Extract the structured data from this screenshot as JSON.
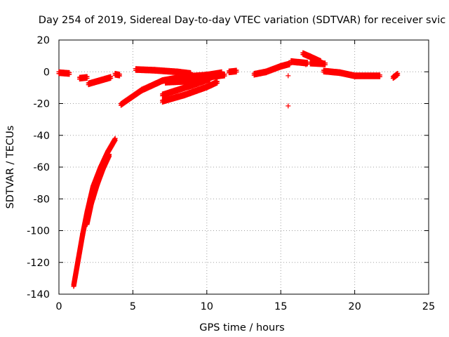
{
  "chart_data": {
    "type": "scatter",
    "title": "Day 254 of 2019, Sidereal Day-to-day VTEC variation (SDTVAR) for receiver svic",
    "xlabel": "GPS time / hours",
    "ylabel": "SDTVAR / TECUs",
    "xlim": [
      0,
      25
    ],
    "ylim": [
      -140,
      20
    ],
    "xticks": [
      0,
      5,
      10,
      15,
      20,
      25
    ],
    "yticks": [
      -140,
      -120,
      -100,
      -80,
      -60,
      -40,
      -20,
      0,
      20
    ],
    "grid": true,
    "legend": "none",
    "marker": "+",
    "color": "#ff0000",
    "series": [
      {
        "segments": [
          [
            [
              0.0,
              0.0
            ],
            [
              0.7,
              -0.5
            ]
          ],
          [
            [
              1.4,
              -3.5
            ],
            [
              1.9,
              -3.0
            ]
          ],
          [
            [
              2.0,
              -7.0
            ],
            [
              3.5,
              -3.0
            ]
          ],
          [
            [
              3.8,
              -1.0
            ],
            [
              4.1,
              -1.5
            ]
          ],
          [
            [
              4.2,
              -20.0
            ],
            [
              5.6,
              -11.0
            ],
            [
              7.0,
              -5.0
            ],
            [
              8.5,
              -2.5
            ],
            [
              10.0,
              -1.5
            ],
            [
              11.0,
              0.0
            ]
          ],
          [
            [
              5.2,
              2.0
            ],
            [
              6.5,
              1.5
            ],
            [
              8.0,
              0.5
            ],
            [
              8.9,
              -0.5
            ]
          ],
          [
            [
              7.2,
              -6.0
            ],
            [
              8.5,
              -5.5
            ],
            [
              10.0,
              -3.0
            ],
            [
              11.2,
              -1.5
            ]
          ],
          [
            [
              7.0,
              -14.0
            ],
            [
              9.0,
              -8.0
            ],
            [
              10.2,
              -4.0
            ]
          ],
          [
            [
              7.0,
              -18.0
            ],
            [
              8.5,
              -14.0
            ],
            [
              10.0,
              -9.0
            ],
            [
              10.7,
              -6.0
            ]
          ],
          [
            [
              11.5,
              0.5
            ],
            [
              12.0,
              1.0
            ]
          ],
          [
            [
              13.2,
              -1.0
            ],
            [
              14.0,
              0.5
            ],
            [
              15.0,
              4.0
            ],
            [
              15.6,
              5.5
            ]
          ],
          [
            [
              15.7,
              7.0
            ],
            [
              16.8,
              6.0
            ]
          ],
          [
            [
              16.5,
              12.0
            ],
            [
              17.0,
              10.0
            ],
            [
              17.7,
              7.0
            ]
          ],
          [
            [
              17.0,
              6.0
            ],
            [
              18.0,
              5.5
            ]
          ],
          [
            [
              17.9,
              1.0
            ],
            [
              19.0,
              0.0
            ],
            [
              20.0,
              -2.0
            ],
            [
              21.7,
              -2.0
            ]
          ],
          [
            [
              22.6,
              -3.0
            ],
            [
              22.9,
              -1.0
            ]
          ],
          [
            [
              1.0,
              -134.0
            ],
            [
              1.3,
              -118.0
            ],
            [
              1.6,
              -102.0
            ],
            [
              1.9,
              -88.0
            ],
            [
              2.3,
              -72.0
            ],
            [
              2.8,
              -60.0
            ],
            [
              3.3,
              -50.0
            ],
            [
              3.8,
              -42.0
            ]
          ],
          [
            [
              1.9,
              -95.0
            ],
            [
              2.2,
              -82.0
            ],
            [
              2.6,
              -70.0
            ],
            [
              3.0,
              -60.0
            ],
            [
              3.4,
              -52.0
            ]
          ]
        ]
      }
    ],
    "isolated_points": [
      [
        15.5,
        -21.5
      ],
      [
        15.5,
        -2.5
      ],
      [
        16.7,
        4.5
      ]
    ]
  }
}
